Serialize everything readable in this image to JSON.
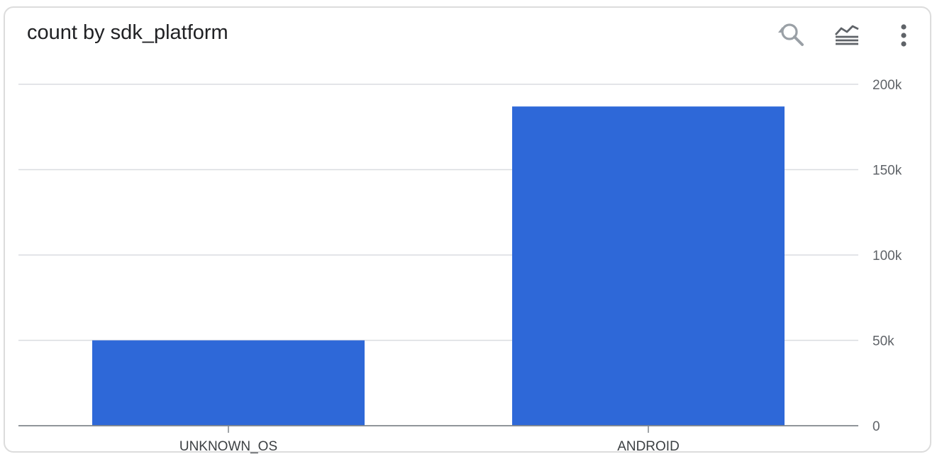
{
  "panel": {
    "title": "count by sdk_platform",
    "toolbar": {
      "zoom_reset_icon": "zoom-reset-icon",
      "chart_type_icon": "area-chart-icon",
      "more_icon": "more-vert-icon"
    }
  },
  "colors": {
    "bar": "#2e68d8",
    "grid": "#dadce0",
    "axis": "#80868b",
    "icon": "#5f6368",
    "icon_muted": "#9aa0a6"
  },
  "chart_data": {
    "type": "bar",
    "title": "count by sdk_platform",
    "xlabel": "",
    "ylabel": "",
    "categories": [
      "UNKNOWN_OS",
      "ANDROID"
    ],
    "values": [
      50000,
      187000
    ],
    "ylim": [
      0,
      200000
    ],
    "yticks": [
      0,
      50000,
      100000,
      150000,
      200000
    ],
    "ytick_labels": [
      "0",
      "50k",
      "100k",
      "150k",
      "200k"
    ],
    "y_axis_side": "right",
    "grid": true,
    "legend": "none"
  }
}
